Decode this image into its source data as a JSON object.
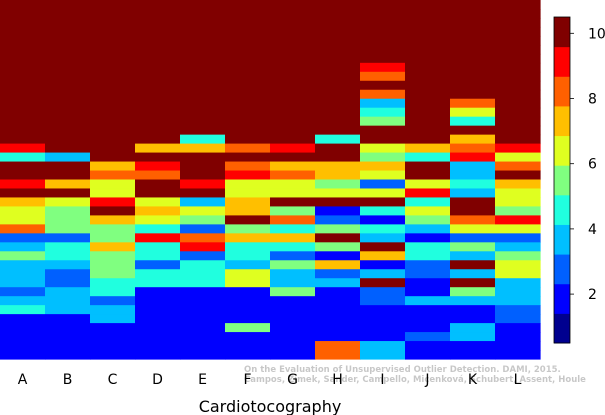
{
  "chart_data": {
    "type": "heatmap",
    "title": "",
    "xlabel": "Cardiotocography",
    "ylabel": "",
    "categories": [
      "A",
      "B",
      "C",
      "D",
      "E",
      "F",
      "G",
      "H",
      "I",
      "J",
      "K",
      "L"
    ],
    "n_rows": 40,
    "colorbar": {
      "min": 0.5,
      "max": 10.5,
      "ticks": [
        2,
        4,
        6,
        8,
        10
      ]
    },
    "grid": false,
    "credit": [
      "On the Evaluation of Unsupervised Outlier Detection. DAMI, 2015.",
      "Campos, Zimek, Sander, Campello, Micenková, Schubert, Assent, Houle"
    ],
    "columns": [
      {
        "category": "A",
        "values": [
          10,
          10,
          10,
          10,
          10,
          10,
          10,
          10,
          10,
          10,
          10,
          10,
          10,
          10,
          10,
          10,
          9,
          4,
          10,
          10,
          9,
          10,
          7,
          6,
          6,
          8,
          2,
          3,
          5,
          3,
          3,
          3,
          2,
          3,
          4,
          1,
          1,
          1,
          1,
          1
        ]
      },
      {
        "category": "B",
        "values": [
          10,
          10,
          10,
          10,
          10,
          10,
          10,
          10,
          10,
          10,
          10,
          10,
          10,
          10,
          10,
          10,
          10,
          3,
          10,
          10,
          7,
          10,
          6,
          5,
          5,
          5,
          2,
          4,
          4,
          3,
          2,
          2,
          3,
          3,
          3,
          1,
          1,
          1,
          1,
          1
        ]
      },
      {
        "category": "C",
        "values": [
          10,
          10,
          10,
          10,
          10,
          10,
          10,
          10,
          10,
          10,
          10,
          10,
          10,
          10,
          10,
          10,
          10,
          10,
          7,
          8,
          6,
          6,
          9,
          10,
          7,
          5,
          5,
          7,
          5,
          5,
          5,
          4,
          4,
          2,
          3,
          3,
          1,
          1,
          1,
          1
        ]
      },
      {
        "category": "D",
        "values": [
          10,
          10,
          10,
          10,
          10,
          10,
          10,
          10,
          10,
          10,
          10,
          10,
          10,
          10,
          10,
          10,
          7,
          10,
          9,
          8,
          10,
          10,
          6,
          7,
          6,
          4,
          9,
          4,
          4,
          2,
          4,
          4,
          1,
          1,
          1,
          1,
          1,
          1,
          1,
          1
        ]
      },
      {
        "category": "E",
        "values": [
          10,
          10,
          10,
          10,
          10,
          10,
          10,
          10,
          10,
          10,
          10,
          10,
          10,
          10,
          10,
          4,
          7,
          10,
          10,
          10,
          9,
          10,
          3,
          6,
          5,
          2,
          8,
          9,
          2,
          4,
          4,
          4,
          1,
          1,
          1,
          1,
          1,
          1,
          1,
          1
        ]
      },
      {
        "category": "F",
        "values": [
          10,
          10,
          10,
          10,
          10,
          10,
          10,
          10,
          10,
          10,
          10,
          10,
          10,
          10,
          10,
          10,
          8,
          10,
          8,
          9,
          6,
          6,
          7,
          7,
          10,
          5,
          7,
          4,
          4,
          3,
          6,
          6,
          1,
          1,
          1,
          1,
          5,
          1,
          1,
          1
        ]
      },
      {
        "category": "G",
        "values": [
          10,
          10,
          10,
          10,
          10,
          10,
          10,
          10,
          10,
          10,
          10,
          10,
          10,
          10,
          10,
          10,
          9,
          10,
          7,
          8,
          6,
          6,
          10,
          5,
          8,
          4,
          7,
          4,
          2,
          5,
          3,
          3,
          5,
          1,
          1,
          1,
          1,
          1,
          1,
          1
        ]
      },
      {
        "category": "H",
        "values": [
          10,
          10,
          10,
          10,
          10,
          10,
          10,
          10,
          10,
          10,
          10,
          10,
          10,
          10,
          10,
          4,
          10,
          10,
          7,
          7,
          5,
          6,
          10,
          1,
          2,
          5,
          10,
          5,
          1,
          7,
          2,
          3,
          1,
          1,
          1,
          1,
          1,
          1,
          8,
          8
        ]
      },
      {
        "category": "I",
        "values": [
          10,
          10,
          10,
          10,
          10,
          10,
          10,
          9,
          8,
          10,
          8,
          3,
          4,
          5,
          10,
          10,
          6,
          5,
          7,
          6,
          2,
          6,
          10,
          4,
          1,
          4,
          3,
          10,
          7,
          1,
          3,
          10,
          2,
          2,
          1,
          1,
          1,
          1,
          3,
          3
        ]
      },
      {
        "category": "J",
        "values": [
          10,
          10,
          10,
          10,
          10,
          10,
          10,
          10,
          10,
          10,
          10,
          10,
          10,
          10,
          10,
          10,
          7,
          4,
          10,
          10,
          6,
          9,
          4,
          6,
          5,
          3,
          1,
          4,
          4,
          2,
          2,
          1,
          1,
          3,
          1,
          1,
          1,
          2,
          1,
          1
        ]
      },
      {
        "category": "K",
        "values": [
          10,
          10,
          10,
          10,
          10,
          10,
          10,
          10,
          10,
          10,
          10,
          8,
          6,
          4,
          10,
          7,
          8,
          9,
          3,
          3,
          4,
          3,
          10,
          10,
          8,
          6,
          2,
          5,
          3,
          10,
          3,
          10,
          5,
          3,
          1,
          1,
          3,
          3,
          1,
          1
        ]
      },
      {
        "category": "L",
        "values": [
          10,
          10,
          10,
          10,
          10,
          10,
          10,
          10,
          10,
          10,
          10,
          10,
          10,
          10,
          10,
          10,
          9,
          6,
          8,
          10,
          7,
          6,
          6,
          5,
          9,
          6,
          2,
          3,
          5,
          6,
          6,
          3,
          3,
          3,
          2,
          2,
          1,
          1,
          1,
          1
        ]
      }
    ]
  }
}
